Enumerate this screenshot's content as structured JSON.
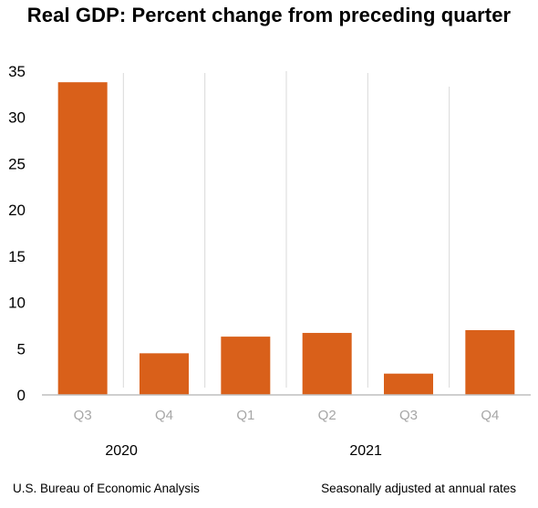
{
  "chart_data": {
    "type": "bar",
    "title": "Real GDP:  Percent change from preceding quarter",
    "categories": [
      "Q3",
      "Q4",
      "Q1",
      "Q2",
      "Q3",
      "Q4"
    ],
    "values": [
      33.8,
      4.5,
      6.3,
      6.7,
      2.3,
      7.0
    ],
    "year_groups": [
      {
        "label": "2020",
        "span": [
          0,
          1
        ]
      },
      {
        "label": "2021",
        "span": [
          2,
          5
        ]
      }
    ],
    "ylim": [
      0,
      35
    ],
    "yticks": [
      0,
      5,
      10,
      15,
      20,
      25,
      30,
      35
    ],
    "xlabel": "",
    "ylabel": "",
    "bar_color": "#D9601A",
    "grid": false
  },
  "footer": {
    "source": "U.S. Bureau of Economic Analysis",
    "note": "Seasonally adjusted at annual rates"
  }
}
